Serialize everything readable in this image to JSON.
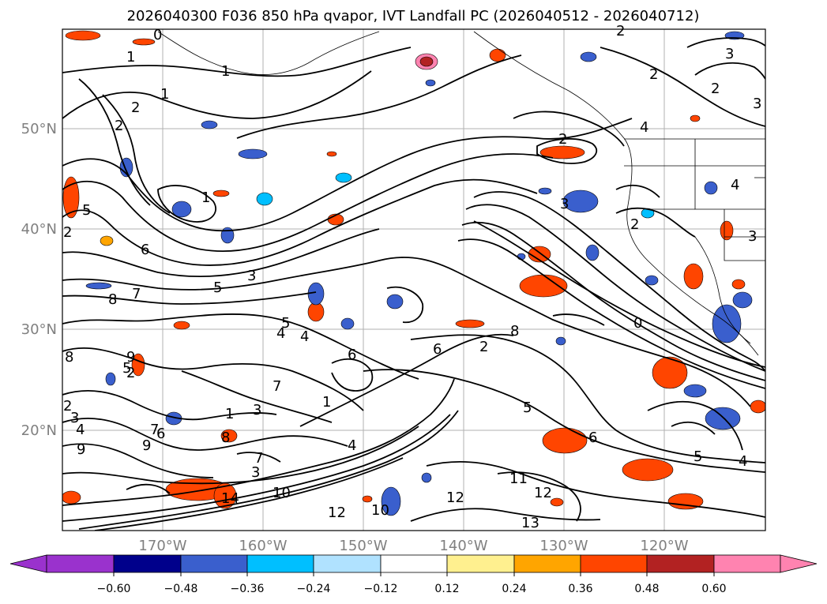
{
  "title": "2026040300 F036 850 hPa qvapor, IVT Landfall PC (2026040512 - 2026040712)",
  "map": {
    "lat_labels": [
      "50°N",
      "40°N",
      "30°N",
      "20°N"
    ],
    "lon_labels": [
      "170°W",
      "160°W",
      "150°W",
      "140°W",
      "130°W",
      "120°W"
    ]
  },
  "contour_labels": [
    "0",
    "1",
    "1",
    "1",
    "2",
    "2",
    "1",
    "2",
    "2",
    "2",
    "3",
    "2",
    "3",
    "2",
    "4",
    "3",
    "3",
    "2",
    "5",
    "4",
    "6",
    "5",
    "8",
    "7",
    "3",
    "5",
    "2",
    "3",
    "2",
    "4",
    "5",
    "6",
    "8",
    "9",
    "3",
    "9",
    "7",
    "4",
    "6",
    "1",
    "3",
    "4",
    "6",
    "7",
    "8",
    "9",
    "10",
    "11",
    "12",
    "12",
    "13",
    "14",
    "10",
    "12",
    "5",
    "5",
    "4",
    "8",
    "7",
    "1",
    "6",
    "0",
    "4",
    "2"
  ],
  "colorbar": {
    "levels": [
      "−0.60",
      "−0.48",
      "−0.36",
      "−0.24",
      "−0.12",
      "0.12",
      "0.24",
      "0.36",
      "0.48",
      "0.60"
    ],
    "colors": [
      "#9a32cd",
      "#00008b",
      "#3a5fcd",
      "#00bfff",
      "#b0e2ff",
      "#ffffff",
      "#fff08f",
      "#ffa500",
      "#ff4500",
      "#b22222",
      "#ff83b0",
      "#ff83b0"
    ]
  }
}
